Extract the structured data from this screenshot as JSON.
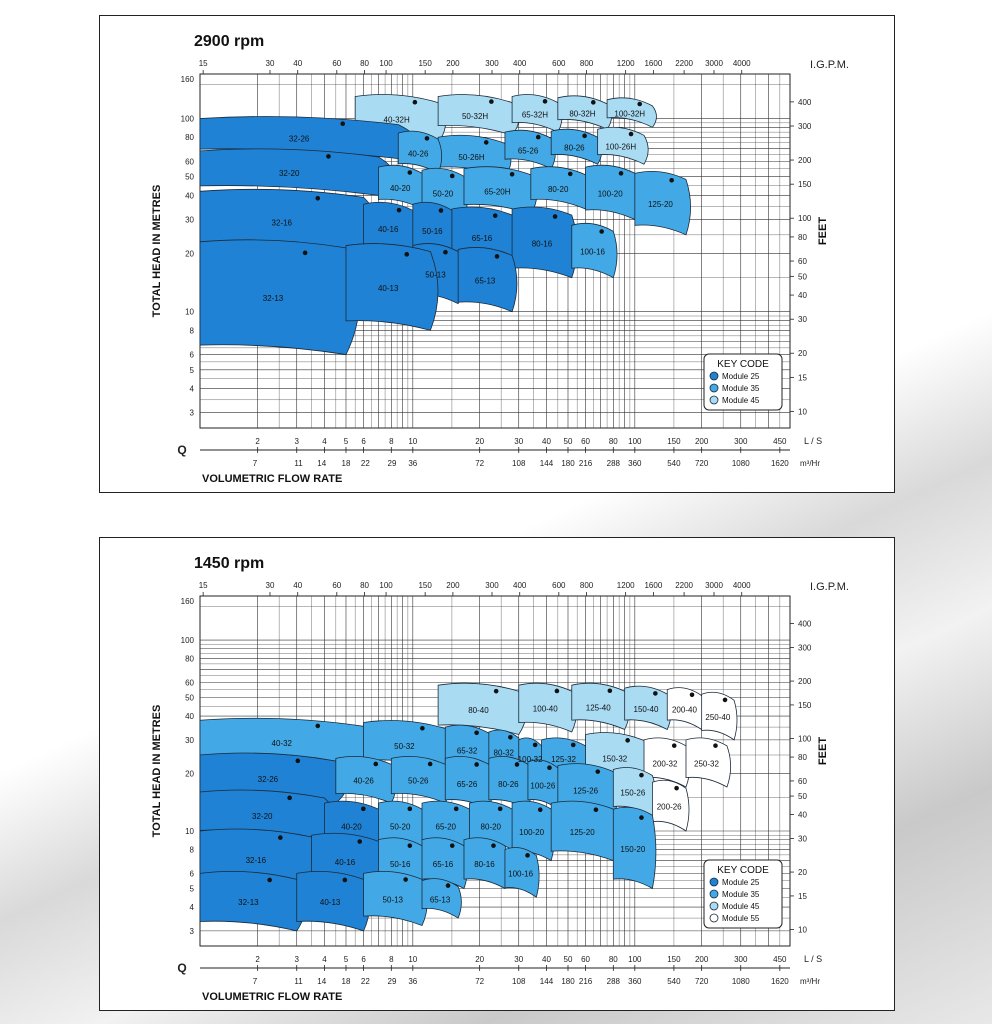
{
  "chart_data": [
    {
      "type": "area",
      "title": "2900 rpm",
      "xlabel": "VOLUMETRIC  FLOW RATE",
      "ylabel": "TOTAL HEAD IN METRES",
      "y2label": "FEET",
      "x_symbol": "Q",
      "x_scale": "log",
      "y_scale": "log",
      "xlim": [
        1.1,
        500
      ],
      "ylim": [
        2.5,
        170
      ],
      "grid": true,
      "units": {
        "ls": "L / S",
        "m3": "m³/Hr",
        "igpm": "I.G.P.M."
      },
      "x_ticks_ls": [
        "2",
        "3",
        "4",
        "5",
        "6",
        "8",
        "10",
        "20",
        "30",
        "40",
        "50",
        "60",
        "80",
        "100",
        "150",
        "200",
        "300",
        "450"
      ],
      "x_ticks_m3": [
        "7",
        "11",
        "14",
        "18",
        "22",
        "29",
        "36",
        "72",
        "108",
        "144",
        "180",
        "216",
        "288",
        "360",
        "540",
        "720",
        "1080",
        "1620"
      ],
      "x_ticks_igpm": [
        "15",
        "30",
        "40",
        "60",
        "80",
        "100",
        "150",
        "200",
        "300",
        "400",
        "600",
        "800",
        "1200",
        "1600",
        "2200",
        "3000",
        "4000"
      ],
      "y_ticks_m": [
        "3",
        "4",
        "5",
        "6",
        "8",
        "10",
        "20",
        "30",
        "40",
        "50",
        "60",
        "80",
        "100",
        "160"
      ],
      "y_ticks_ft": [
        "10",
        "15",
        "20",
        "30",
        "40",
        "50",
        "60",
        "80",
        "100",
        "150",
        "200",
        "300",
        "400"
      ],
      "legend": {
        "title": "KEY CODE",
        "position": "bottom-right",
        "items": [
          {
            "label": "Module  25",
            "color": "#1f82d4"
          },
          {
            "label": "Module  35",
            "color": "#42a9e6"
          },
          {
            "label": "Module  45",
            "color": "#a9dbf3"
          }
        ]
      },
      "regions": [
        {
          "label": "40-32H",
          "module": 45,
          "xmin": 5.5,
          "xmax": 13,
          "hmax": 130,
          "hmin": 75
        },
        {
          "label": "50-32H",
          "module": 45,
          "xmin": 13,
          "xmax": 28,
          "hmax": 130,
          "hmin": 82
        },
        {
          "label": "65-32H",
          "module": 45,
          "xmin": 28,
          "xmax": 45,
          "hmax": 130,
          "hmin": 85
        },
        {
          "label": "80-32H",
          "module": 45,
          "xmin": 45,
          "xmax": 75,
          "hmax": 128,
          "hmin": 88
        },
        {
          "label": "100-32H",
          "module": 45,
          "xmin": 75,
          "xmax": 120,
          "hmax": 125,
          "hmin": 90
        },
        {
          "label": "50-26H",
          "module": 35,
          "xmin": 13,
          "xmax": 26,
          "hmax": 80,
          "hmin": 50
        },
        {
          "label": "65-26",
          "module": 35,
          "xmin": 26,
          "xmax": 42,
          "hmax": 85,
          "hmin": 55
        },
        {
          "label": "80-26",
          "module": 35,
          "xmin": 42,
          "xmax": 68,
          "hmax": 86,
          "hmin": 58
        },
        {
          "label": "100-26H",
          "module": 45,
          "xmin": 68,
          "xmax": 110,
          "hmax": 88,
          "hmin": 58
        },
        {
          "label": "32-26",
          "module": 25,
          "xmin": 1.1,
          "xmax": 8.6,
          "hmax": 100,
          "hmin": 62
        },
        {
          "label": "40-26",
          "module": 35,
          "xmin": 8.6,
          "xmax": 13,
          "hmax": 84,
          "hmin": 52
        },
        {
          "label": "32-20",
          "module": 25,
          "xmin": 1.1,
          "xmax": 7,
          "hmax": 68,
          "hmin": 40
        },
        {
          "label": "40-20",
          "module": 35,
          "xmin": 7,
          "xmax": 11,
          "hmax": 56,
          "hmin": 34
        },
        {
          "label": "50-20",
          "module": 35,
          "xmin": 11,
          "xmax": 17,
          "hmax": 54,
          "hmin": 31
        },
        {
          "label": "65-20H",
          "module": 35,
          "xmin": 17,
          "xmax": 34,
          "hmax": 55,
          "hmin": 32
        },
        {
          "label": "80-20",
          "module": 35,
          "xmin": 34,
          "xmax": 60,
          "hmax": 55,
          "hmin": 34
        },
        {
          "label": "100-20",
          "module": 35,
          "xmin": 60,
          "xmax": 100,
          "hmax": 56,
          "hmin": 30
        },
        {
          "label": "125-20",
          "module": 35,
          "xmin": 100,
          "xmax": 170,
          "hmax": 52,
          "hmin": 25
        },
        {
          "label": "32-16",
          "module": 25,
          "xmin": 1.1,
          "xmax": 6,
          "hmax": 42,
          "hmin": 20
        },
        {
          "label": "40-16",
          "module": 25,
          "xmin": 6,
          "xmax": 10,
          "hmax": 36,
          "hmin": 20
        },
        {
          "label": "50-16",
          "module": 25,
          "xmin": 10,
          "xmax": 15,
          "hmax": 36,
          "hmin": 19
        },
        {
          "label": "65-16",
          "module": 25,
          "xmin": 15,
          "xmax": 28,
          "hmax": 34,
          "hmin": 17
        },
        {
          "label": "80-16",
          "module": 25,
          "xmin": 28,
          "xmax": 52,
          "hmax": 34,
          "hmin": 15
        },
        {
          "label": "100-16",
          "module": 35,
          "xmin": 52,
          "xmax": 80,
          "hmax": 28,
          "hmin": 15
        },
        {
          "label": "50-13",
          "module": 25,
          "xmin": 10,
          "xmax": 16,
          "hmax": 22,
          "hmin": 11
        },
        {
          "label": "65-13",
          "module": 25,
          "xmin": 16,
          "xmax": 28,
          "hmax": 21,
          "hmin": 10
        },
        {
          "label": "32-13",
          "module": 25,
          "xmin": 1.1,
          "xmax": 5,
          "hmax": 23,
          "hmin": 6
        },
        {
          "label": "40-13",
          "module": 25,
          "xmin": 5,
          "xmax": 12,
          "hmax": 22,
          "hmin": 8
        }
      ]
    },
    {
      "type": "area",
      "title": "1450 rpm",
      "xlabel": "VOLUMETRIC  FLOW RATE",
      "ylabel": "TOTAL HEAD IN METRES",
      "y2label": "FEET",
      "x_symbol": "Q",
      "x_scale": "log",
      "y_scale": "log",
      "xlim": [
        1.1,
        500
      ],
      "ylim": [
        2.5,
        170
      ],
      "grid": true,
      "units": {
        "ls": "L / S",
        "m3": "m³/Hr",
        "igpm": "I.G.P.M."
      },
      "x_ticks_ls": [
        "2",
        "3",
        "4",
        "5",
        "6",
        "8",
        "10",
        "20",
        "30",
        "40",
        "50",
        "60",
        "80",
        "100",
        "150",
        "200",
        "300",
        "450"
      ],
      "x_ticks_m3": [
        "7",
        "11",
        "14",
        "18",
        "22",
        "29",
        "36",
        "72",
        "108",
        "144",
        "180",
        "216",
        "288",
        "360",
        "540",
        "720",
        "1080",
        "1620"
      ],
      "x_ticks_igpm": [
        "15",
        "30",
        "40",
        "60",
        "80",
        "100",
        "150",
        "200",
        "300",
        "400",
        "600",
        "800",
        "1200",
        "1600",
        "2200",
        "3000",
        "4000"
      ],
      "y_ticks_m": [
        "3",
        "4",
        "5",
        "6",
        "8",
        "10",
        "20",
        "30",
        "40",
        "50",
        "60",
        "80",
        "100",
        "160"
      ],
      "y_ticks_ft": [
        "10",
        "15",
        "20",
        "30",
        "40",
        "50",
        "60",
        "80",
        "100",
        "150",
        "200",
        "300",
        "400"
      ],
      "legend": {
        "title": "KEY CODE",
        "position": "bottom-right",
        "items": [
          {
            "label": "Module  25",
            "color": "#1f82d4"
          },
          {
            "label": "Module  35",
            "color": "#42a9e6"
          },
          {
            "label": "Module  45",
            "color": "#a9dbf3"
          },
          {
            "label": "Module  55",
            "color": "#ffffff"
          }
        ]
      },
      "regions": [
        {
          "label": "80-40",
          "module": 45,
          "xmin": 13,
          "xmax": 30,
          "hmax": 58,
          "hmin": 32
        },
        {
          "label": "100-40",
          "module": 45,
          "xmin": 30,
          "xmax": 52,
          "hmax": 58,
          "hmin": 33
        },
        {
          "label": "125-40",
          "module": 45,
          "xmin": 52,
          "xmax": 90,
          "hmax": 58,
          "hmin": 34
        },
        {
          "label": "150-40",
          "module": 45,
          "xmin": 90,
          "xmax": 140,
          "hmax": 56,
          "hmin": 34
        },
        {
          "label": "200-40",
          "module": 55,
          "xmin": 140,
          "xmax": 200,
          "hmax": 55,
          "hmin": 34
        },
        {
          "label": "250-40",
          "module": 55,
          "xmin": 200,
          "xmax": 280,
          "hmax": 52,
          "hmin": 30
        },
        {
          "label": "40-32",
          "module": 35,
          "xmin": 1.1,
          "xmax": 6,
          "hmax": 38,
          "hmin": 22
        },
        {
          "label": "50-32",
          "module": 35,
          "xmin": 6,
          "xmax": 14,
          "hmax": 37,
          "hmin": 21
        },
        {
          "label": "65-32",
          "module": 35,
          "xmin": 14,
          "xmax": 22,
          "hmax": 35,
          "hmin": 20
        },
        {
          "label": "80-32",
          "module": 35,
          "xmin": 22,
          "xmax": 30,
          "hmax": 33,
          "hmin": 20
        },
        {
          "label": "100-32",
          "module": 35,
          "xmin": 30,
          "xmax": 38,
          "hmax": 30,
          "hmin": 19
        },
        {
          "label": "125-32",
          "module": 35,
          "xmin": 38,
          "xmax": 60,
          "hmax": 30,
          "hmin": 19
        },
        {
          "label": "150-32",
          "module": 45,
          "xmin": 60,
          "xmax": 110,
          "hmax": 32,
          "hmin": 18
        },
        {
          "label": "200-32",
          "module": 55,
          "xmin": 110,
          "xmax": 170,
          "hmax": 30,
          "hmin": 17
        },
        {
          "label": "250-32",
          "module": 55,
          "xmin": 170,
          "xmax": 260,
          "hmax": 30,
          "hmin": 17
        },
        {
          "label": "32-26",
          "module": 25,
          "xmin": 1.1,
          "xmax": 4.5,
          "hmax": 25,
          "hmin": 14
        },
        {
          "label": "40-26",
          "module": 35,
          "xmin": 4.5,
          "xmax": 8,
          "hmax": 24,
          "hmin": 14
        },
        {
          "label": "50-26",
          "module": 35,
          "xmin": 8,
          "xmax": 14,
          "hmax": 24,
          "hmin": 14
        },
        {
          "label": "65-26",
          "module": 35,
          "xmin": 14,
          "xmax": 22,
          "hmax": 24,
          "hmin": 13
        },
        {
          "label": "80-26",
          "module": 35,
          "xmin": 22,
          "xmax": 33,
          "hmax": 24,
          "hmin": 13
        },
        {
          "label": "100-26",
          "module": 35,
          "xmin": 33,
          "xmax": 45,
          "hmax": 23,
          "hmin": 13
        },
        {
          "label": "125-26",
          "module": 35,
          "xmin": 45,
          "xmax": 80,
          "hmax": 22,
          "hmin": 12
        },
        {
          "label": "150-26",
          "module": 45,
          "xmin": 80,
          "xmax": 120,
          "hmax": 21,
          "hmin": 12
        },
        {
          "label": "200-26",
          "module": 55,
          "xmin": 120,
          "xmax": 170,
          "hmax": 18,
          "hmin": 10
        },
        {
          "label": "32-20",
          "module": 25,
          "xmin": 1.1,
          "xmax": 4,
          "hmax": 16,
          "hmin": 9
        },
        {
          "label": "40-20",
          "module": 25,
          "xmin": 4,
          "xmax": 7,
          "hmax": 14,
          "hmin": 8
        },
        {
          "label": "50-20",
          "module": 35,
          "xmin": 7,
          "xmax": 11,
          "hmax": 14,
          "hmin": 8
        },
        {
          "label": "65-20",
          "module": 35,
          "xmin": 11,
          "xmax": 18,
          "hmax": 14,
          "hmin": 8
        },
        {
          "label": "80-20",
          "module": 35,
          "xmin": 18,
          "xmax": 28,
          "hmax": 14,
          "hmin": 8
        },
        {
          "label": "100-20",
          "module": 35,
          "xmin": 28,
          "xmax": 42,
          "hmax": 14,
          "hmin": 7
        },
        {
          "label": "125-20",
          "module": 35,
          "xmin": 42,
          "xmax": 80,
          "hmax": 14,
          "hmin": 7
        },
        {
          "label": "150-20",
          "module": 35,
          "xmin": 80,
          "xmax": 120,
          "hmax": 13,
          "hmin": 5
        },
        {
          "label": "32-16",
          "module": 25,
          "xmin": 1.1,
          "xmax": 3.5,
          "hmax": 10,
          "hmin": 5
        },
        {
          "label": "40-16",
          "module": 25,
          "xmin": 3.5,
          "xmax": 7,
          "hmax": 9.5,
          "hmin": 5
        },
        {
          "label": "50-16",
          "module": 35,
          "xmin": 7,
          "xmax": 11,
          "hmax": 9,
          "hmin": 5
        },
        {
          "label": "65-16",
          "module": 35,
          "xmin": 11,
          "xmax": 17,
          "hmax": 9,
          "hmin": 5
        },
        {
          "label": "80-16",
          "module": 35,
          "xmin": 17,
          "xmax": 26,
          "hmax": 9,
          "hmin": 5
        },
        {
          "label": "100-16",
          "module": 35,
          "xmin": 26,
          "xmax": 36,
          "hmax": 8,
          "hmin": 4.5
        },
        {
          "label": "32-13",
          "module": 25,
          "xmin": 1.1,
          "xmax": 3,
          "hmax": 6,
          "hmin": 3
        },
        {
          "label": "40-13",
          "module": 25,
          "xmin": 3,
          "xmax": 6,
          "hmax": 6,
          "hmin": 3
        },
        {
          "label": "50-13",
          "module": 35,
          "xmin": 6,
          "xmax": 11,
          "hmax": 6,
          "hmin": 3.2
        },
        {
          "label": "65-13",
          "module": 35,
          "xmin": 11,
          "xmax": 16,
          "hmax": 5.5,
          "hmin": 3.5
        }
      ]
    }
  ]
}
